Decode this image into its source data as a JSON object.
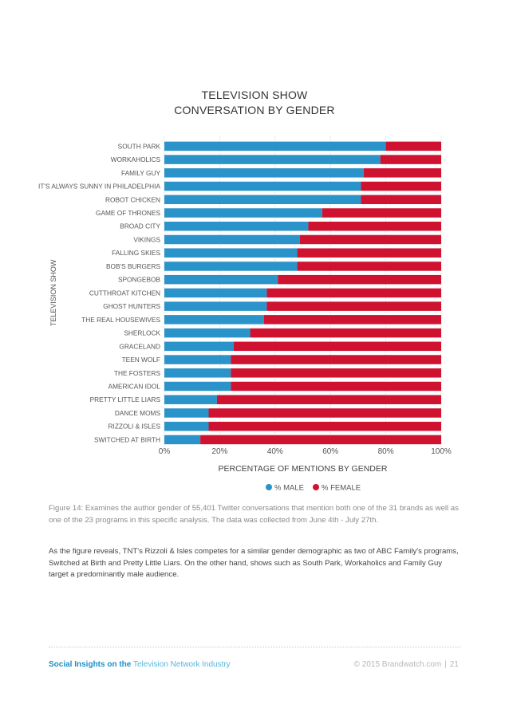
{
  "chart_data": {
    "type": "bar",
    "orientation": "horizontal",
    "stacked": true,
    "title": [
      "TELEVISION SHOW",
      "CONVERSATION BY GENDER"
    ],
    "ylabel": "TELEVISION SHOW",
    "xlabel": "PERCENTAGE OF MENTIONS BY GENDER",
    "xlim": [
      0,
      100
    ],
    "xticks": [
      "0%",
      "20%",
      "40%",
      "60%",
      "80%",
      "100%"
    ],
    "grid": "vertical dotted",
    "legend_position": "bottom-center",
    "categories": [
      "SOUTH PARK",
      "WORKAHOLICS",
      "FAMILY GUY",
      "IT'S ALWAYS SUNNY IN PHILADELPHIA",
      "ROBOT CHICKEN",
      "GAME OF THRONES",
      "BROAD CITY",
      "VIKINGS",
      "FALLING SKIES",
      "BOB'S BURGERS",
      "SPONGEBOB",
      "CUTTHROAT KITCHEN",
      "GHOST HUNTERS",
      "THE REAL HOUSEWIVES",
      "SHERLOCK",
      "GRACELAND",
      "TEEN WOLF",
      "THE FOSTERS",
      "AMERICAN IDOL",
      "PRETTY LITTLE LIARS",
      "DANCE MOMS",
      "RIZZOLI & ISLES",
      "SWITCHED AT BIRTH"
    ],
    "series": [
      {
        "name": "% MALE",
        "color": "#2a93c9",
        "values": [
          80,
          78,
          72,
          71,
          71,
          57,
          52,
          49,
          48,
          48,
          41,
          37,
          37,
          36,
          31,
          25,
          24,
          24,
          24,
          19,
          16,
          16,
          13
        ]
      },
      {
        "name": "% FEMALE",
        "color": "#cf1230",
        "values": [
          20,
          22,
          28,
          29,
          29,
          43,
          48,
          51,
          52,
          52,
          59,
          63,
          63,
          64,
          69,
          75,
          76,
          76,
          76,
          81,
          84,
          84,
          87
        ]
      }
    ]
  },
  "caption": "Figure 14: Examines the author gender of 55,401 Twitter conversations that mention both one of the 31 brands as well as one of the 23 programs in this specific analysis. The data was collected from June 4th - July 27th.",
  "body_text": "As the figure reveals, TNT's Rizzoli & Isles competes for a similar gender demographic as two of ABC Family's programs, Switched at Birth and Pretty Little Liars. On the other hand, shows such as South Park, Workaholics and Family Guy target a predominantly male audience.",
  "footer": {
    "left_strong": "Social Insights on the",
    "left_light": "Television Network Industry",
    "right": "© 2015 Brandwatch.com",
    "separator": "|",
    "page": "21"
  }
}
